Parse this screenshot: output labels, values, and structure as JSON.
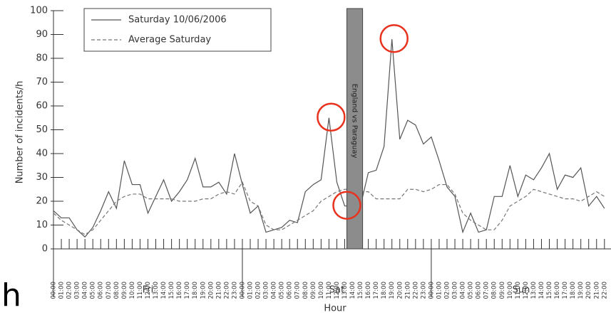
{
  "chart_data": {
    "type": "line",
    "y_label": "Number of incidents/h",
    "x_label": "Hour",
    "categories": [
      "00:00",
      "01:00",
      "02:00",
      "03:00",
      "04:00",
      "05:00",
      "06:00",
      "07:00",
      "08:00",
      "09:00",
      "10:00",
      "11:00",
      "12:00",
      "13:00",
      "14:00",
      "15:00",
      "16:00",
      "17:00",
      "18:00",
      "19:00",
      "20:00",
      "21:00",
      "22:00",
      "23:00",
      "00:00",
      "01:00",
      "02:00",
      "03:00",
      "04:00",
      "05:00",
      "06:00",
      "07:00",
      "08:00",
      "09:00",
      "10:00",
      "11:00",
      "12:00",
      "13:00",
      "14:00",
      "15:00",
      "16:00",
      "17:00",
      "18:00",
      "19:00",
      "20:00",
      "21:00",
      "22:00",
      "23:00",
      "00:00",
      "01:00",
      "02:00",
      "03:00",
      "04:00",
      "05:00",
      "06:00",
      "07:00",
      "08:00",
      "09:00",
      "10:00",
      "11:00",
      "12:00",
      "13:00",
      "14:00",
      "15:00",
      "16:00",
      "17:00",
      "18:00",
      "19:00",
      "20:00",
      "21:00",
      "22:00"
    ],
    "groups": [
      {
        "label": "Fri",
        "start": 0,
        "end": 24
      },
      {
        "label": "Sat",
        "start": 24,
        "end": 48
      },
      {
        "label": "Sun",
        "start": 48,
        "end": 71
      }
    ],
    "series": [
      {
        "name": "Saturday 10/06/2006",
        "color": "#555555",
        "dash": "solid",
        "values": [
          16,
          13,
          13,
          8,
          5,
          9,
          16,
          24,
          17,
          37,
          27,
          27,
          15,
          22,
          29,
          20,
          24,
          29,
          38,
          26,
          26,
          28,
          23,
          40,
          27,
          15,
          18,
          7,
          8,
          9,
          12,
          11,
          24,
          27,
          29,
          55,
          28,
          18,
          18,
          18,
          32,
          33,
          43,
          88,
          46,
          54,
          52,
          44,
          47,
          37,
          26,
          22,
          7,
          15,
          7,
          8,
          22,
          22,
          35,
          22,
          31,
          29,
          34,
          40,
          25,
          31,
          30,
          34,
          18,
          22,
          17
        ]
      },
      {
        "name": "Average Saturday",
        "color": "#777777",
        "dash": "dashed",
        "values": [
          15,
          12,
          10,
          8,
          6,
          8,
          12,
          16,
          20,
          22,
          23,
          23,
          21,
          21,
          21,
          21,
          20,
          20,
          20,
          21,
          21,
          23,
          24,
          23,
          28,
          20,
          18,
          10,
          8,
          8,
          10,
          12,
          14,
          16,
          20,
          22,
          24,
          25,
          25,
          24,
          24,
          21,
          21,
          21,
          21,
          25,
          25,
          24,
          25,
          27,
          27,
          23,
          15,
          12,
          10,
          8,
          8,
          12,
          18,
          20,
          22,
          25,
          24,
          23,
          22,
          21,
          21,
          20,
          22,
          24,
          22
        ]
      }
    ],
    "ylim": [
      0,
      100
    ],
    "yticks": [
      0,
      10,
      20,
      30,
      40,
      50,
      60,
      70,
      80,
      90,
      100
    ],
    "legend": "top-left",
    "band": {
      "label": "England vs Paraguay",
      "start": 38,
      "end": 40,
      "color": "#8c8c8c"
    },
    "circled_points": [
      {
        "series": 0,
        "index": 35
      },
      {
        "series": 0,
        "index": 43
      },
      {
        "series": 0,
        "index": 37
      }
    ],
    "stray_text": "h"
  }
}
